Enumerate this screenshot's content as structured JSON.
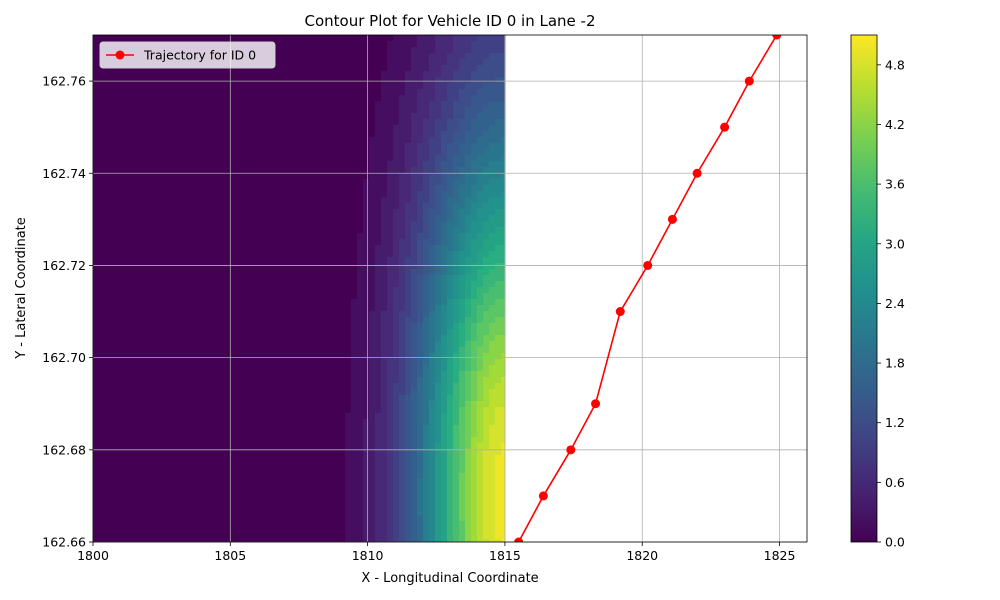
{
  "chart_data": {
    "type": "contour",
    "title": "Contour Plot for Vehicle ID 0 in Lane -2",
    "xlabel": "X - Longitudinal Coordinate",
    "ylabel": "Y - Lateral Coordinate",
    "xlim": [
      1800,
      1826
    ],
    "ylim": [
      162.66,
      162.77
    ],
    "grid": true,
    "x_ticks": [
      1800,
      1805,
      1810,
      1815,
      1820,
      1825
    ],
    "x_tick_labels": [
      "1800",
      "1805",
      "1810",
      "1815",
      "1820",
      "1825"
    ],
    "y_ticks": [
      162.66,
      162.68,
      162.7,
      162.72,
      162.74,
      162.76
    ],
    "y_tick_labels": [
      "162.66",
      "162.68",
      "162.70",
      "162.72",
      "162.74",
      "162.76"
    ],
    "contour_field": {
      "x_range": [
        1800,
        1815
      ],
      "peak_x": 1815,
      "peak_y": 162.67,
      "peak_value": 5.1,
      "colormap": "viridis"
    },
    "colorbar": {
      "min": 0.0,
      "max": 5.1,
      "ticks": [
        0.0,
        0.6,
        1.2,
        1.8,
        2.4,
        3.0,
        3.6,
        4.2,
        4.8
      ],
      "tick_labels": [
        "0.0",
        "0.6",
        "1.2",
        "1.8",
        "2.4",
        "3.0",
        "3.6",
        "4.2",
        "4.8"
      ]
    },
    "series": [
      {
        "name": "Trajectory for ID 0",
        "color": "#ff0000",
        "marker": "circle",
        "x": [
          1815.5,
          1816.4,
          1817.4,
          1818.3,
          1819.2,
          1820.2,
          1821.1,
          1822.0,
          1823.0,
          1823.9,
          1824.9
        ],
        "y": [
          162.66,
          162.67,
          162.68,
          162.69,
          162.71,
          162.72,
          162.73,
          162.74,
          162.75,
          162.76,
          162.77
        ]
      }
    ],
    "legend_position": "upper-left"
  }
}
